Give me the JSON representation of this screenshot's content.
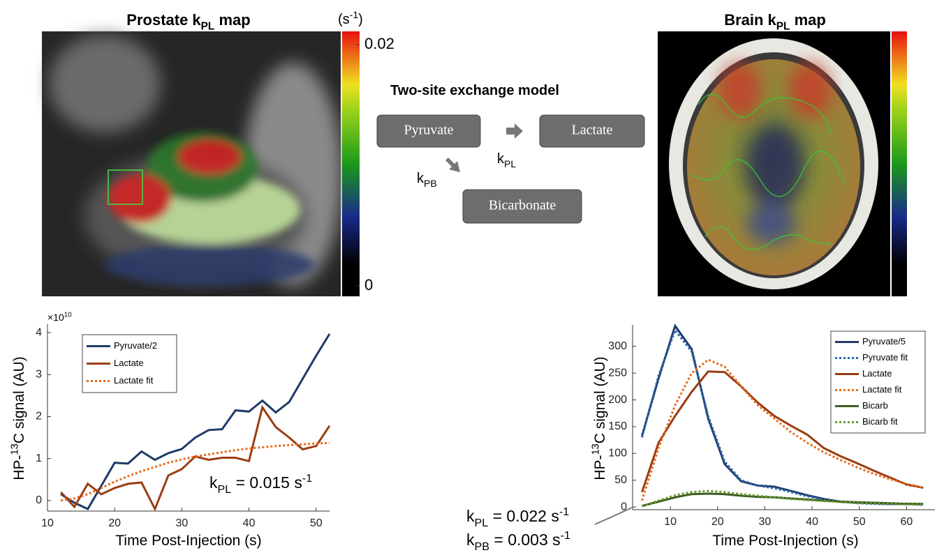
{
  "prostate": {
    "title": [
      {
        "t": "Prostate k"
      },
      {
        "sub": "PL"
      },
      {
        "t": " map"
      }
    ],
    "colorbar": {
      "unit": [
        {
          "t": "(s"
        },
        {
          "sup": "-1"
        },
        {
          "t": ")"
        }
      ],
      "ticks": [
        0,
        0.02
      ]
    }
  },
  "model": {
    "title": "Two-site exchange model",
    "nodes": [
      "Pyruvate",
      "Lactate",
      "Bicarbonate"
    ],
    "edges": [
      [
        {
          "t": "k"
        },
        {
          "sub": "PL"
        }
      ],
      [
        {
          "t": "k"
        },
        {
          "sub": "PB"
        }
      ]
    ]
  },
  "brain": {
    "title": [
      {
        "t": "Brain k"
      },
      {
        "sub": "PL"
      },
      {
        "t": " map"
      }
    ]
  },
  "chart_data": [
    {
      "type": "line",
      "x": [
        12,
        14,
        16,
        18,
        20,
        22,
        24,
        26,
        28,
        30,
        32,
        34,
        36,
        38,
        40,
        42,
        44,
        46,
        48,
        50,
        52
      ],
      "series": [
        {
          "name": "Pyruvate/2",
          "color": "#1f3a68",
          "dash": false,
          "values": [
            0.15,
            -0.05,
            -0.2,
            0.35,
            0.9,
            0.88,
            1.17,
            0.97,
            1.13,
            1.23,
            1.5,
            1.68,
            1.7,
            2.15,
            2.12,
            2.38,
            2.1,
            2.35,
            2.9,
            3.45,
            3.97
          ]
        },
        {
          "name": "Lactate",
          "color": "#9a3d12",
          "dash": false,
          "values": [
            0.2,
            -0.15,
            0.4,
            0.15,
            0.3,
            0.4,
            0.43,
            -0.2,
            0.6,
            0.75,
            1.05,
            0.97,
            1.02,
            1.02,
            0.94,
            2.22,
            1.75,
            1.5,
            1.22,
            1.3,
            1.78
          ]
        },
        {
          "name": "Lactate fit",
          "color": "#ea6a1a",
          "dash": true,
          "values": [
            0.0,
            0.05,
            0.15,
            0.3,
            0.45,
            0.58,
            0.7,
            0.8,
            0.9,
            0.98,
            1.05,
            1.1,
            1.15,
            1.2,
            1.24,
            1.27,
            1.3,
            1.32,
            1.34,
            1.36,
            1.37
          ]
        }
      ],
      "xlim": [
        10,
        52
      ],
      "ylim": [
        -0.25,
        4.2
      ],
      "xticks": [
        10,
        20,
        30,
        40,
        50
      ],
      "yticks": [
        0,
        1,
        2,
        3,
        4
      ],
      "xlabel": "Time Post-Injection (s)",
      "ylabel": [
        {
          "t": "HP-"
        },
        {
          "sup": "13"
        },
        {
          "t": "C signal (AU)"
        }
      ],
      "y_multiplier": [
        {
          "t": "×10"
        },
        {
          "sup": "10"
        }
      ],
      "annotations": [
        [
          {
            "t": "k"
          },
          {
            "sub": "PL"
          },
          {
            "t": " = 0.015 s"
          },
          {
            "sup": "-1"
          }
        ]
      ],
      "legend": "upper left",
      "grid": false
    },
    {
      "type": "line",
      "x": [
        4,
        7.5,
        11,
        14.5,
        18,
        21.5,
        25,
        28.5,
        32,
        35.5,
        39,
        42.5,
        46,
        49.5,
        53,
        56.5,
        60,
        63.5
      ],
      "series": [
        {
          "name": "Pyruvate/5",
          "color": "#1f3a68",
          "dash": false,
          "values": [
            133,
            240,
            338,
            295,
            165,
            80,
            48,
            40,
            38,
            30,
            22,
            15,
            10,
            8,
            7,
            6,
            6,
            5
          ]
        },
        {
          "name": "Pyruvate fit",
          "color": "#2a66b0",
          "dash": true,
          "values": [
            130,
            245,
            330,
            290,
            170,
            85,
            50,
            40,
            35,
            28,
            20,
            14,
            10,
            7,
            6,
            5,
            5,
            4
          ]
        },
        {
          "name": "Lactate",
          "color": "#9a3d12",
          "dash": false,
          "values": [
            28,
            120,
            170,
            215,
            253,
            252,
            225,
            195,
            170,
            152,
            135,
            110,
            95,
            82,
            68,
            55,
            42,
            36
          ]
        },
        {
          "name": "Lactate fit",
          "color": "#ea6a1a",
          "dash": true,
          "values": [
            12,
            110,
            190,
            250,
            275,
            262,
            225,
            190,
            165,
            140,
            120,
            102,
            88,
            74,
            62,
            52,
            43,
            36
          ]
        },
        {
          "name": "Bicarb",
          "color": "#3c5e1e",
          "dash": false,
          "values": [
            2,
            10,
            18,
            24,
            25,
            24,
            21,
            19,
            18,
            16,
            14,
            12,
            10,
            9,
            8,
            7,
            6,
            6
          ]
        },
        {
          "name": "Bicarb fit",
          "color": "#6b9a2e",
          "dash": true,
          "values": [
            1,
            12,
            22,
            28,
            30,
            28,
            24,
            21,
            18,
            15,
            13,
            11,
            9,
            8,
            7,
            6,
            5,
            5
          ]
        }
      ],
      "xlim": [
        2,
        66
      ],
      "ylim": [
        -5,
        340
      ],
      "xticks": [
        10,
        20,
        30,
        40,
        50,
        60
      ],
      "yticks": [
        0,
        50,
        100,
        150,
        200,
        250,
        300
      ],
      "xlabel": "Time Post-Injection (s)",
      "ylabel": [
        {
          "t": "HP-"
        },
        {
          "sup": "13"
        },
        {
          "t": "C signal (AU)"
        }
      ],
      "annotations": [
        [
          {
            "t": "k"
          },
          {
            "sub": "PL"
          },
          {
            "t": " = 0.022 s"
          },
          {
            "sup": "-1"
          }
        ],
        [
          {
            "t": "k"
          },
          {
            "sub": "PB"
          },
          {
            "t": " = 0.003 s"
          },
          {
            "sup": "-1"
          }
        ]
      ],
      "legend": "upper right",
      "grid": false
    }
  ]
}
